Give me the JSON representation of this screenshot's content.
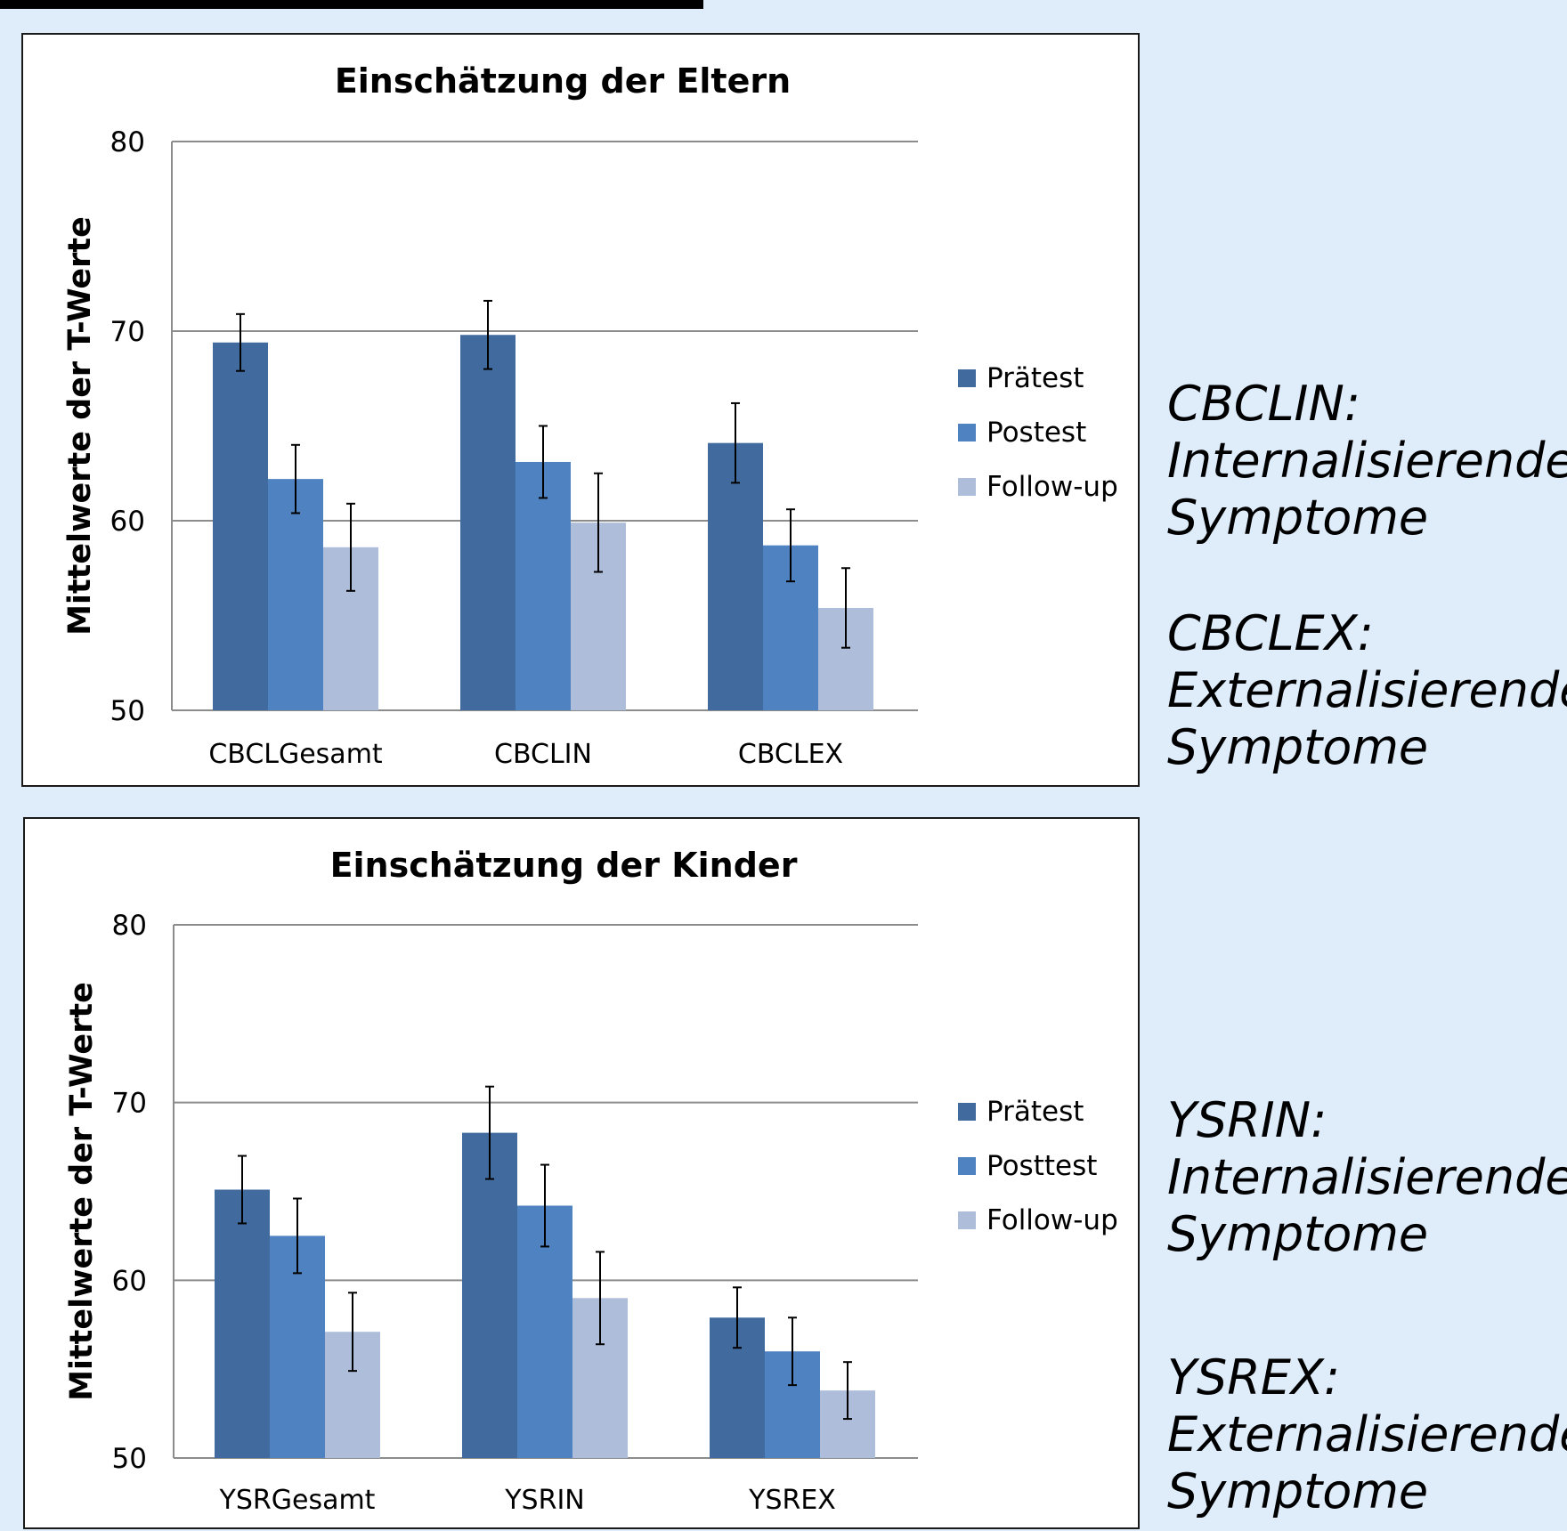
{
  "chart_data": [
    {
      "type": "bar",
      "title": "Einschätzung der Eltern",
      "ylabel": "Mittelwerte der T-Werte",
      "xlabel": "",
      "ylim": [
        50,
        80
      ],
      "yticks": [
        50,
        60,
        70,
        80
      ],
      "grid": true,
      "legend_position": "right",
      "categories": [
        "CBCLGesamt",
        "CBCLIN",
        "CBCLEX"
      ],
      "series": [
        {
          "name": "Prätest",
          "color": "#416a9e",
          "values": [
            69.4,
            69.8,
            64.1
          ],
          "error": [
            1.5,
            1.8,
            2.1
          ]
        },
        {
          "name": "Postest",
          "color": "#4f82c0",
          "values": [
            62.2,
            63.1,
            58.7
          ],
          "error": [
            1.8,
            1.9,
            1.9
          ]
        },
        {
          "name": "Follow-up",
          "color": "#adbdda",
          "values": [
            58.6,
            59.9,
            55.4
          ],
          "error": [
            2.3,
            2.6,
            2.1
          ]
        }
      ]
    },
    {
      "type": "bar",
      "title": "Einschätzung der Kinder",
      "ylabel": "Mittelwerte der T-Werte",
      "xlabel": "",
      "ylim": [
        50,
        80
      ],
      "yticks": [
        50,
        60,
        70,
        80
      ],
      "grid": true,
      "legend_position": "right",
      "categories": [
        "YSRGesamt",
        "YSRIN",
        "YSREX"
      ],
      "series": [
        {
          "name": "Prätest",
          "color": "#416a9e",
          "values": [
            65.1,
            68.3,
            57.9
          ],
          "error": [
            1.9,
            2.6,
            1.7
          ]
        },
        {
          "name": "Posttest",
          "color": "#4f82c0",
          "values": [
            62.5,
            64.2,
            56.0
          ],
          "error": [
            2.1,
            2.3,
            1.9
          ]
        },
        {
          "name": "Follow-up",
          "color": "#adbdda",
          "values": [
            57.1,
            59.0,
            53.8
          ],
          "error": [
            2.2,
            2.6,
            1.6
          ]
        }
      ]
    }
  ],
  "notes": [
    {
      "term": "CBCLIN:",
      "lines": [
        "Internalisierende",
        "Symptome"
      ]
    },
    {
      "term": "CBCLEX:",
      "lines": [
        "Externalisierende",
        "Symptome"
      ]
    },
    {
      "term": "YSRIN:",
      "lines": [
        "Internalisierende",
        "Symptome"
      ]
    },
    {
      "term": "YSREX:",
      "lines": [
        "Externalisierende",
        "Symptome"
      ]
    }
  ]
}
